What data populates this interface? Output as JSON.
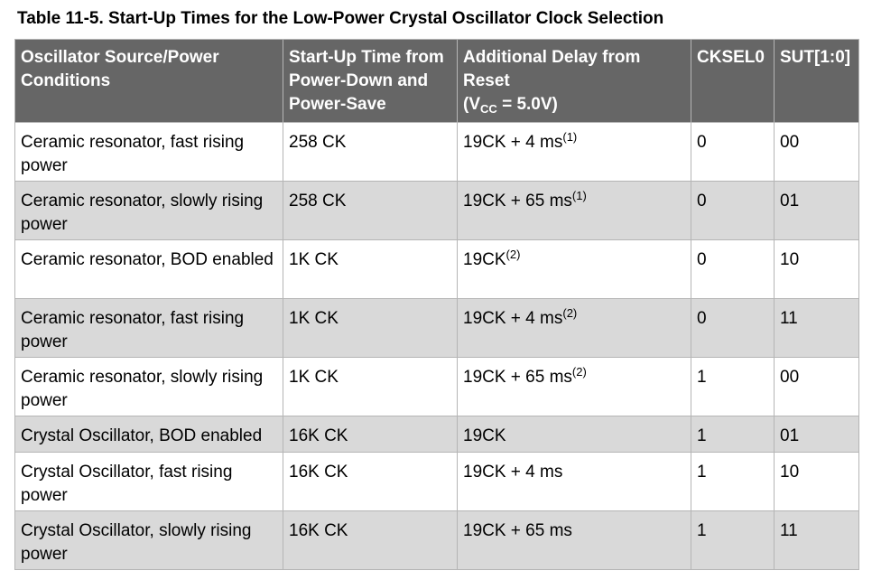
{
  "caption": "Table 11-5.  Start-Up Times for the Low-Power Crystal Oscillator Clock Selection",
  "headers": {
    "source": "Oscillator Source/Power Conditions",
    "startup": "Start-Up Time from Power-Down and Power-Save",
    "delay_text": "Additional Delay from Reset",
    "delay_v": "V",
    "delay_cc": "CC",
    "delay_rest": " = 5.0V)",
    "cksel0": "CKSEL0",
    "sut": "SUT[1:0]"
  },
  "rows": [
    {
      "source": "Ceramic resonator, fast rising power",
      "startup": "258 CK",
      "delay": "19CK + 4 ms",
      "note": "(1)",
      "cksel0": "0",
      "sut": "00"
    },
    {
      "source": "Ceramic resonator, slowly rising power",
      "startup": "258 CK",
      "delay": "19CK + 65 ms",
      "note": "(1)",
      "cksel0": "0",
      "sut": "01"
    },
    {
      "source": "Ceramic resonator, BOD enabled",
      "startup": "1K CK",
      "delay": "19CK",
      "note": "(2)",
      "cksel0": "0",
      "sut": "10"
    },
    {
      "source": "Ceramic resonator, fast rising power",
      "startup": "1K CK",
      "delay": "19CK + 4 ms",
      "note": "(2)",
      "cksel0": "0",
      "sut": "11"
    },
    {
      "source": "Ceramic resonator, slowly rising power",
      "startup": "1K CK",
      "delay": "19CK + 65 ms",
      "note": "(2)",
      "cksel0": "1",
      "sut": "00"
    },
    {
      "source": "Crystal Oscillator, BOD enabled",
      "startup": "16K CK",
      "delay": "19CK",
      "note": "",
      "cksel0": "1",
      "sut": "01"
    },
    {
      "source": "Crystal Oscillator, fast rising power",
      "startup": "16K CK",
      "delay": "19CK + 4 ms",
      "note": "",
      "cksel0": "1",
      "sut": "10"
    },
    {
      "source": "Crystal Oscillator, slowly rising power",
      "startup": "16K CK",
      "delay": "19CK + 65 ms",
      "note": "",
      "cksel0": "1",
      "sut": "11"
    }
  ]
}
